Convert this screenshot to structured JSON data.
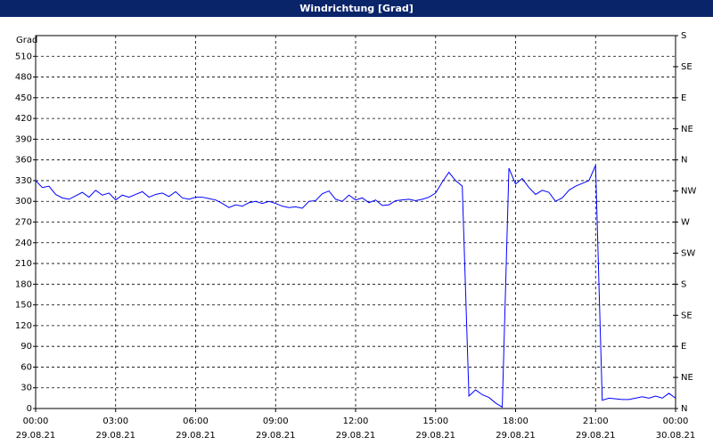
{
  "chart_data": {
    "type": "line",
    "title": "Windrichtung [Grad]",
    "y_label": "Grad",
    "x": [
      0,
      0.25,
      0.5,
      0.75,
      1,
      1.25,
      1.5,
      1.75,
      2,
      2.25,
      2.5,
      2.75,
      3,
      3.25,
      3.5,
      3.75,
      4,
      4.25,
      4.5,
      4.75,
      5,
      5.25,
      5.5,
      5.75,
      6,
      6.25,
      6.5,
      6.75,
      7,
      7.25,
      7.5,
      7.75,
      8,
      8.25,
      8.5,
      8.75,
      9,
      9.25,
      9.5,
      9.75,
      10,
      10.25,
      10.5,
      10.75,
      11,
      11.25,
      11.5,
      11.75,
      12,
      12.25,
      12.5,
      12.75,
      13,
      13.25,
      13.5,
      13.75,
      14,
      14.25,
      14.5,
      14.75,
      15,
      15.25,
      15.5,
      15.75,
      16,
      16.25,
      16.5,
      16.75,
      17,
      17.25,
      17.5,
      17.75,
      18,
      18.25,
      18.5,
      18.75,
      19,
      19.25,
      19.5,
      19.75,
      20,
      20.25,
      20.5,
      20.75,
      21,
      21.25,
      21.5,
      21.75,
      22,
      22.25,
      22.5,
      22.75,
      23,
      23.25,
      23.5,
      23.75,
      24
    ],
    "series": [
      {
        "color": "#0000ff",
        "values": [
          330,
          320,
          322,
          310,
          305,
          303,
          308,
          313,
          306,
          316,
          309,
          312,
          302,
          309,
          306,
          310,
          314,
          306,
          310,
          312,
          307,
          314,
          305,
          303,
          306,
          306,
          304,
          302,
          297,
          291,
          295,
          293,
          298,
          300,
          297,
          300,
          297,
          293,
          291,
          292,
          290,
          300,
          301,
          311,
          315,
          303,
          300,
          309,
          302,
          305,
          298,
          302,
          294,
          295,
          301,
          302,
          303,
          301,
          303,
          306,
          312,
          328,
          342,
          330,
          322,
          18,
          27,
          20,
          16,
          8,
          2,
          348,
          325,
          333,
          320,
          310,
          316,
          313,
          300,
          305,
          316,
          322,
          326,
          330,
          352,
          12,
          15,
          14,
          13,
          13,
          15,
          17,
          15,
          18,
          15,
          22,
          15
        ]
      }
    ],
    "xlim": [
      0,
      24
    ],
    "xticks": [
      {
        "value": 0,
        "label": "00:00",
        "date": "29.08.21"
      },
      {
        "value": 3,
        "label": "03:00",
        "date": "29.08.21"
      },
      {
        "value": 6,
        "label": "06:00",
        "date": "29.08.21"
      },
      {
        "value": 9,
        "label": "09:00",
        "date": "29.08.21"
      },
      {
        "value": 12,
        "label": "12:00",
        "date": "29.08.21"
      },
      {
        "value": 15,
        "label": "15:00",
        "date": "29.08.21"
      },
      {
        "value": 18,
        "label": "18:00",
        "date": "29.08.21"
      },
      {
        "value": 21,
        "label": "21:00",
        "date": "29.08.21"
      },
      {
        "value": 24,
        "label": "00:00",
        "date": "30.08.21"
      }
    ],
    "ylim": [
      0,
      540
    ],
    "yticks": [
      0,
      30,
      60,
      90,
      120,
      150,
      180,
      210,
      240,
      270,
      300,
      330,
      360,
      390,
      420,
      450,
      480,
      510
    ],
    "y2lim": [
      0,
      540
    ],
    "y2ticks": [
      {
        "value": 0,
        "label": "N"
      },
      {
        "value": 45,
        "label": "NE"
      },
      {
        "value": 90,
        "label": "E"
      },
      {
        "value": 135,
        "label": "SE"
      },
      {
        "value": 180,
        "label": "S"
      },
      {
        "value": 225,
        "label": "SW"
      },
      {
        "value": 270,
        "label": "W"
      },
      {
        "value": 315,
        "label": "NW"
      },
      {
        "value": 360,
        "label": "N"
      },
      {
        "value": 405,
        "label": "NE"
      },
      {
        "value": 450,
        "label": "E"
      },
      {
        "value": 495,
        "label": "SE"
      },
      {
        "value": 540,
        "label": "S"
      }
    ],
    "grid": true
  }
}
